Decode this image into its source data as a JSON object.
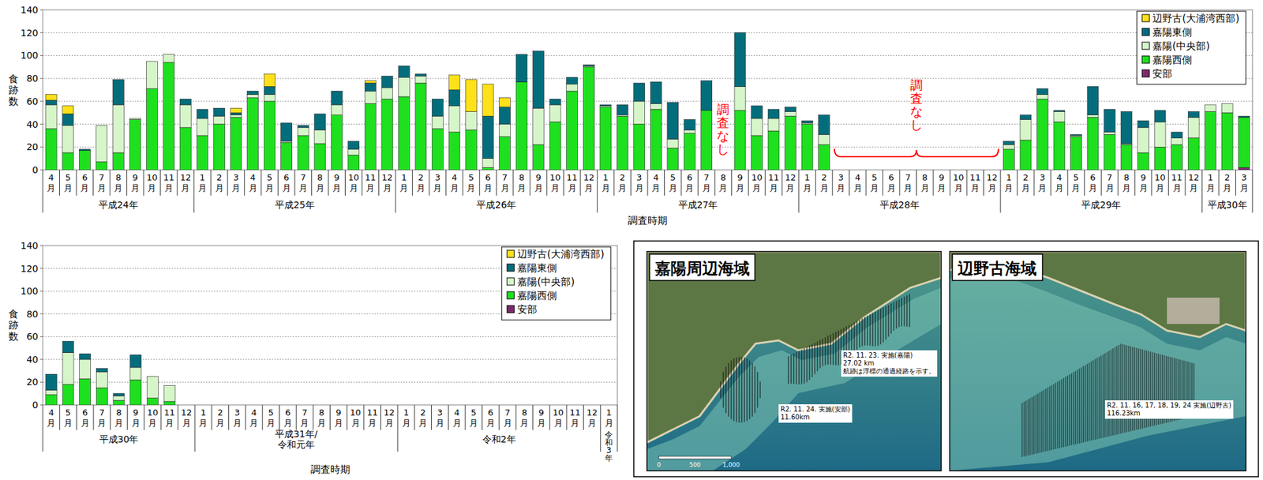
{
  "chart_data": [
    {
      "type": "bar",
      "stacked": true,
      "grid": true,
      "legend": "top-right",
      "y_label": "食跡数",
      "x_label": "調査時期",
      "ylim": [
        0,
        140
      ],
      "yticks": [
        0,
        20,
        40,
        60,
        80,
        100,
        120,
        140
      ],
      "categories": [
        "4月",
        "5月",
        "6月",
        "7月",
        "8月",
        "9月",
        "10月",
        "11月",
        "12月",
        "1月",
        "2月",
        "3月",
        "4月",
        "5月",
        "6月",
        "7月",
        "8月",
        "9月",
        "10月",
        "11月",
        "12月",
        "1月",
        "2月",
        "3月",
        "4月",
        "5月",
        "6月",
        "7月",
        "8月",
        "9月",
        "10月",
        "11月",
        "12月",
        "1月",
        "2月",
        "3月",
        "4月",
        "5月",
        "6月",
        "7月",
        "8月",
        "9月",
        "10月",
        "11月",
        "12月",
        "1月",
        "2月",
        "3月",
        "4月",
        "5月",
        "6月",
        "7月",
        "8月",
        "9月",
        "10月",
        "11月",
        "12月",
        "1月",
        "2月",
        "3月",
        "4月",
        "5月",
        "6月",
        "7月",
        "8月",
        "9月",
        "10月",
        "11月",
        "12月",
        "1月",
        "2月",
        "3月"
      ],
      "category_groups": [
        "平成24年",
        "平成24年",
        "平成24年",
        "平成24年",
        "平成24年",
        "平成24年",
        "平成24年",
        "平成24年",
        "平成24年",
        "平成25年",
        "平成25年",
        "平成25年",
        "平成25年",
        "平成25年",
        "平成25年",
        "平成25年",
        "平成25年",
        "平成25年",
        "平成25年",
        "平成25年",
        "平成25年",
        "平成26年",
        "平成26年",
        "平成26年",
        "平成26年",
        "平成26年",
        "平成26年",
        "平成26年",
        "平成26年",
        "平成26年",
        "平成26年",
        "平成26年",
        "平成26年",
        "平成27年",
        "平成27年",
        "平成27年",
        "平成27年",
        "平成27年",
        "平成27年",
        "平成27年",
        "平成27年",
        "平成27年",
        "平成27年",
        "平成27年",
        "平成27年",
        "平成28年",
        "平成28年",
        "平成28年",
        "平成28年",
        "平成28年",
        "平成28年",
        "平成28年",
        "平成28年",
        "平成28年",
        "平成28年",
        "平成28年",
        "平成28年",
        "平成29年",
        "平成29年",
        "平成29年",
        "平成29年",
        "平成29年",
        "平成29年",
        "平成29年",
        "平成29年",
        "平成29年",
        "平成29年",
        "平成29年",
        "平成29年",
        "平成30年",
        "平成30年",
        "平成30年"
      ],
      "series": [
        {
          "name": "安部",
          "color": "#7b2a6c",
          "values": [
            0,
            0,
            0,
            0,
            0,
            0,
            0,
            0,
            0,
            0,
            0,
            0,
            0,
            0,
            0,
            0,
            0,
            0,
            0,
            0,
            0,
            0,
            0,
            0,
            0,
            0,
            0,
            0,
            0,
            0,
            0,
            0,
            0,
            0,
            0,
            0,
            0,
            0,
            0,
            0,
            null,
            0,
            0,
            0,
            0,
            0,
            0,
            null,
            null,
            null,
            null,
            null,
            null,
            null,
            null,
            null,
            null,
            0,
            0,
            0,
            0,
            0,
            0,
            0,
            0,
            0,
            0,
            0,
            0,
            0,
            0,
            2
          ]
        },
        {
          "name": "嘉陽西側",
          "color": "#1ee01e",
          "values": [
            36,
            15,
            17,
            7,
            15,
            44,
            71,
            94,
            37,
            30,
            40,
            46,
            63,
            60,
            24,
            30,
            23,
            48,
            13,
            58,
            62,
            64,
            76,
            36,
            33,
            35,
            2,
            29,
            77,
            22,
            42,
            69,
            90,
            55,
            47,
            40,
            53,
            19,
            32,
            52,
            null,
            52,
            30,
            34,
            47,
            40,
            22,
            null,
            null,
            null,
            null,
            null,
            null,
            null,
            null,
            null,
            null,
            18,
            26,
            62,
            42,
            29,
            46,
            31,
            22,
            15,
            20,
            22,
            28,
            51,
            50,
            44
          ]
        },
        {
          "name": "嘉陽(中央部)",
          "color": "#d6f5c9",
          "values": [
            21,
            24,
            0,
            32,
            42,
            1,
            24,
            7,
            20,
            15,
            7,
            2,
            3,
            6,
            1,
            7,
            12,
            9,
            5,
            11,
            10,
            17,
            6,
            11,
            23,
            16,
            8,
            11,
            0,
            32,
            15,
            6,
            1,
            1,
            1,
            20,
            5,
            8,
            3,
            0,
            null,
            21,
            15,
            11,
            4,
            1,
            9,
            null,
            null,
            null,
            null,
            null,
            null,
            null,
            null,
            null,
            null,
            4,
            18,
            4,
            9,
            1,
            2,
            2,
            1,
            22,
            22,
            6,
            18,
            6,
            8,
            0
          ]
        },
        {
          "name": "嘉陽東側",
          "color": "#046d7c",
          "values": [
            4,
            10,
            1,
            0,
            22,
            0,
            0,
            0,
            5,
            8,
            7,
            2,
            3,
            7,
            16,
            2,
            14,
            12,
            7,
            7,
            10,
            10,
            2,
            15,
            14,
            0,
            37,
            15,
            24,
            50,
            5,
            6,
            1,
            1,
            9,
            16,
            19,
            32,
            9,
            26,
            null,
            47,
            11,
            8,
            4,
            2,
            17,
            null,
            null,
            null,
            null,
            null,
            null,
            null,
            null,
            null,
            null,
            3,
            4,
            5,
            1,
            1,
            25,
            20,
            28,
            6,
            10,
            5,
            5,
            0,
            0,
            1
          ]
        },
        {
          "name": "辺野古(大浦湾西部)",
          "color": "#ffe11a",
          "values": [
            5,
            7,
            0,
            0,
            0,
            0,
            0,
            0,
            0,
            0,
            0,
            4,
            0,
            11,
            0,
            0,
            0,
            0,
            0,
            2,
            0,
            0,
            0,
            0,
            13,
            28,
            28,
            8,
            0,
            0,
            0,
            0,
            0,
            0,
            0,
            0,
            0,
            0,
            0,
            0,
            null,
            0,
            0,
            0,
            0,
            0,
            0,
            null,
            null,
            null,
            null,
            null,
            null,
            null,
            null,
            null,
            null,
            0,
            0,
            0,
            0,
            0,
            0,
            0,
            0,
            0,
            0,
            0,
            0,
            0,
            0,
            0
          ]
        }
      ],
      "annotations": [
        {
          "text": "調査なし",
          "start": 40,
          "end": 40,
          "color": "#ff0000"
        },
        {
          "text": "調査なし",
          "start": 47,
          "end": 56,
          "color": "#ff0000"
        }
      ]
    },
    {
      "type": "bar",
      "stacked": true,
      "grid": true,
      "legend": "top-right",
      "y_label": "食跡数",
      "x_label": "調査時期",
      "ylim": [
        0,
        140
      ],
      "yticks": [
        0,
        20,
        40,
        60,
        80,
        100,
        120,
        140
      ],
      "categories": [
        "4月",
        "5月",
        "6月",
        "7月",
        "8月",
        "9月",
        "10月",
        "11月",
        "12月",
        "1月",
        "2月",
        "3月",
        "4月",
        "5月",
        "6月",
        "7月",
        "8月",
        "9月",
        "10月",
        "11月",
        "12月",
        "1月",
        "2月",
        "3月",
        "4月",
        "5月",
        "6月",
        "7月",
        "8月",
        "9月",
        "10月",
        "11月",
        "12月",
        "1月"
      ],
      "category_groups": [
        "平成30年",
        "平成30年",
        "平成30年",
        "平成30年",
        "平成30年",
        "平成30年",
        "平成30年",
        "平成30年",
        "平成30年",
        "平成31年/令和元年",
        "平成31年/令和元年",
        "平成31年/令和元年",
        "平成31年/令和元年",
        "平成31年/令和元年",
        "平成31年/令和元年",
        "平成31年/令和元年",
        "平成31年/令和元年",
        "平成31年/令和元年",
        "平成31年/令和元年",
        "平成31年/令和元年",
        "平成31年/令和元年",
        "令和2年",
        "令和2年",
        "令和2年",
        "令和2年",
        "令和2年",
        "令和2年",
        "令和2年",
        "令和2年",
        "令和2年",
        "令和2年",
        "令和2年",
        "令和2年",
        "令和3年"
      ],
      "series": [
        {
          "name": "安部",
          "color": "#7b2a6c",
          "values": [
            0,
            0,
            0,
            0,
            0,
            0,
            0,
            0,
            null,
            null,
            null,
            null,
            null,
            null,
            null,
            null,
            null,
            null,
            null,
            null,
            null,
            null,
            null,
            null,
            null,
            null,
            null,
            null,
            null,
            null,
            null,
            null,
            null,
            null
          ]
        },
        {
          "name": "嘉陽西側",
          "color": "#1ee01e",
          "values": [
            9,
            18,
            23,
            15,
            4,
            22,
            6,
            3,
            null,
            null,
            null,
            null,
            null,
            null,
            null,
            null,
            null,
            null,
            null,
            null,
            null,
            null,
            null,
            null,
            null,
            null,
            null,
            null,
            null,
            null,
            null,
            null,
            null,
            null
          ]
        },
        {
          "name": "嘉陽(中央部)",
          "color": "#d6f5c9",
          "values": [
            4,
            28,
            17,
            14,
            4,
            11,
            19,
            14,
            null,
            null,
            null,
            null,
            null,
            null,
            null,
            null,
            null,
            null,
            null,
            null,
            null,
            null,
            null,
            null,
            null,
            null,
            null,
            null,
            null,
            null,
            null,
            null,
            null,
            null
          ]
        },
        {
          "name": "嘉陽東側",
          "color": "#046d7c",
          "values": [
            14,
            10,
            5,
            3,
            2,
            11,
            0,
            0,
            null,
            null,
            null,
            null,
            null,
            null,
            null,
            null,
            null,
            null,
            null,
            null,
            null,
            null,
            null,
            null,
            null,
            null,
            null,
            null,
            null,
            null,
            null,
            null,
            null,
            null
          ]
        },
        {
          "name": "辺野古(大浦湾西部)",
          "color": "#ffe11a",
          "values": [
            0,
            0,
            0,
            0,
            0,
            0,
            0,
            0,
            null,
            null,
            null,
            null,
            null,
            null,
            null,
            null,
            null,
            null,
            null,
            null,
            null,
            null,
            null,
            null,
            null,
            null,
            null,
            null,
            null,
            null,
            null,
            null,
            null,
            null
          ]
        }
      ]
    }
  ],
  "map_panels": [
    {
      "title": "嘉陽周辺海域",
      "notes": [
        [
          "R2. 11. 23.  実施(嘉陽)",
          "27.02 km",
          "航跡は浮標の通過経路を示す。"
        ],
        [
          "R2. 11. 24.  実施(安部)",
          "11.60km"
        ]
      ],
      "scale_labels": [
        "0",
        "500",
        "1,000"
      ]
    },
    {
      "title": "辺野古海域",
      "notes": [
        [
          "R2. 11. 16, 17, 18, 19, 24  実施(辺野古)",
          "116.23km"
        ]
      ]
    }
  ]
}
